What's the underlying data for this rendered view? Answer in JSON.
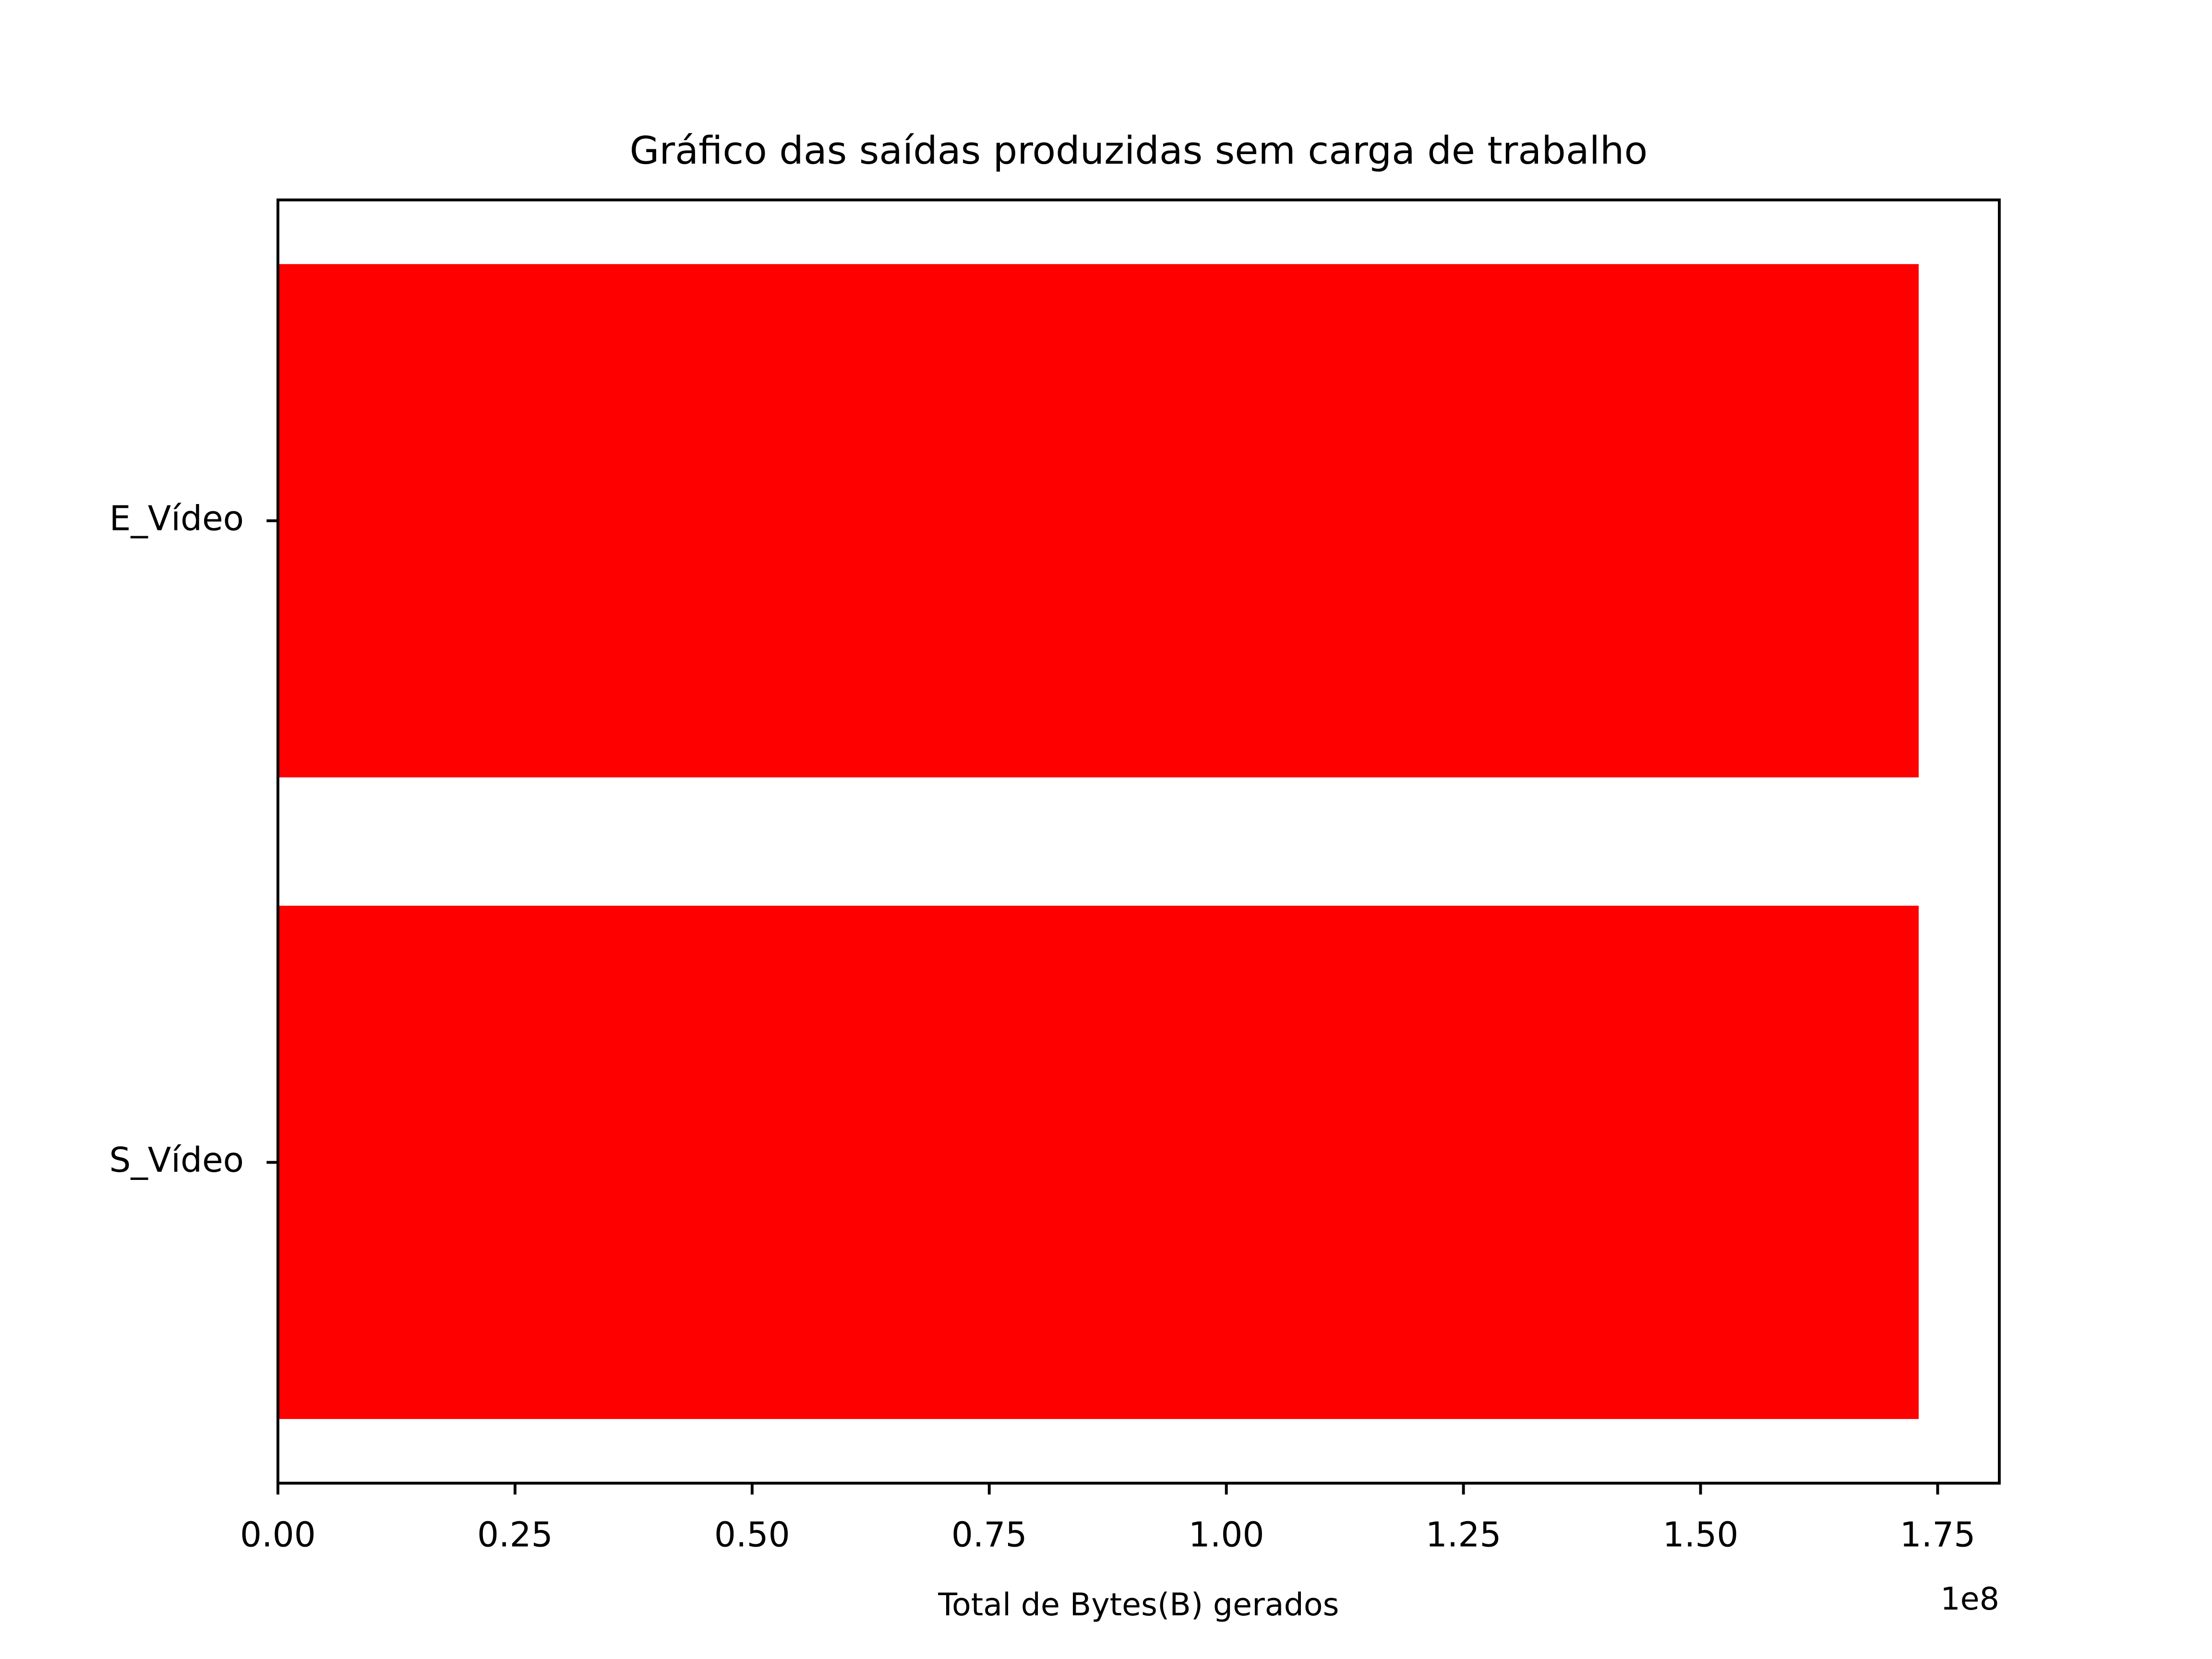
{
  "chart_data": {
    "type": "barh",
    "title": "Gráfico das saídas produzidas sem carga de trabalho",
    "x_label": "Total de Bytes(B) gerados",
    "x_offset_label": "1e8",
    "categories": [
      "E_Vídeo",
      "S_Vídeo"
    ],
    "values": [
      173000000,
      173000000
    ],
    "color": "#ff0000",
    "xlim": [
      0,
      181500000
    ],
    "xticks": [
      {
        "value": 0,
        "label": "0.00"
      },
      {
        "value": 25000000,
        "label": "0.25"
      },
      {
        "value": 50000000,
        "label": "0.50"
      },
      {
        "value": 75000000,
        "label": "0.75"
      },
      {
        "value": 100000000,
        "label": "1.00"
      },
      {
        "value": 125000000,
        "label": "1.25"
      },
      {
        "value": 150000000,
        "label": "1.50"
      },
      {
        "value": 175000000,
        "label": "1.75"
      }
    ],
    "grid": false
  }
}
